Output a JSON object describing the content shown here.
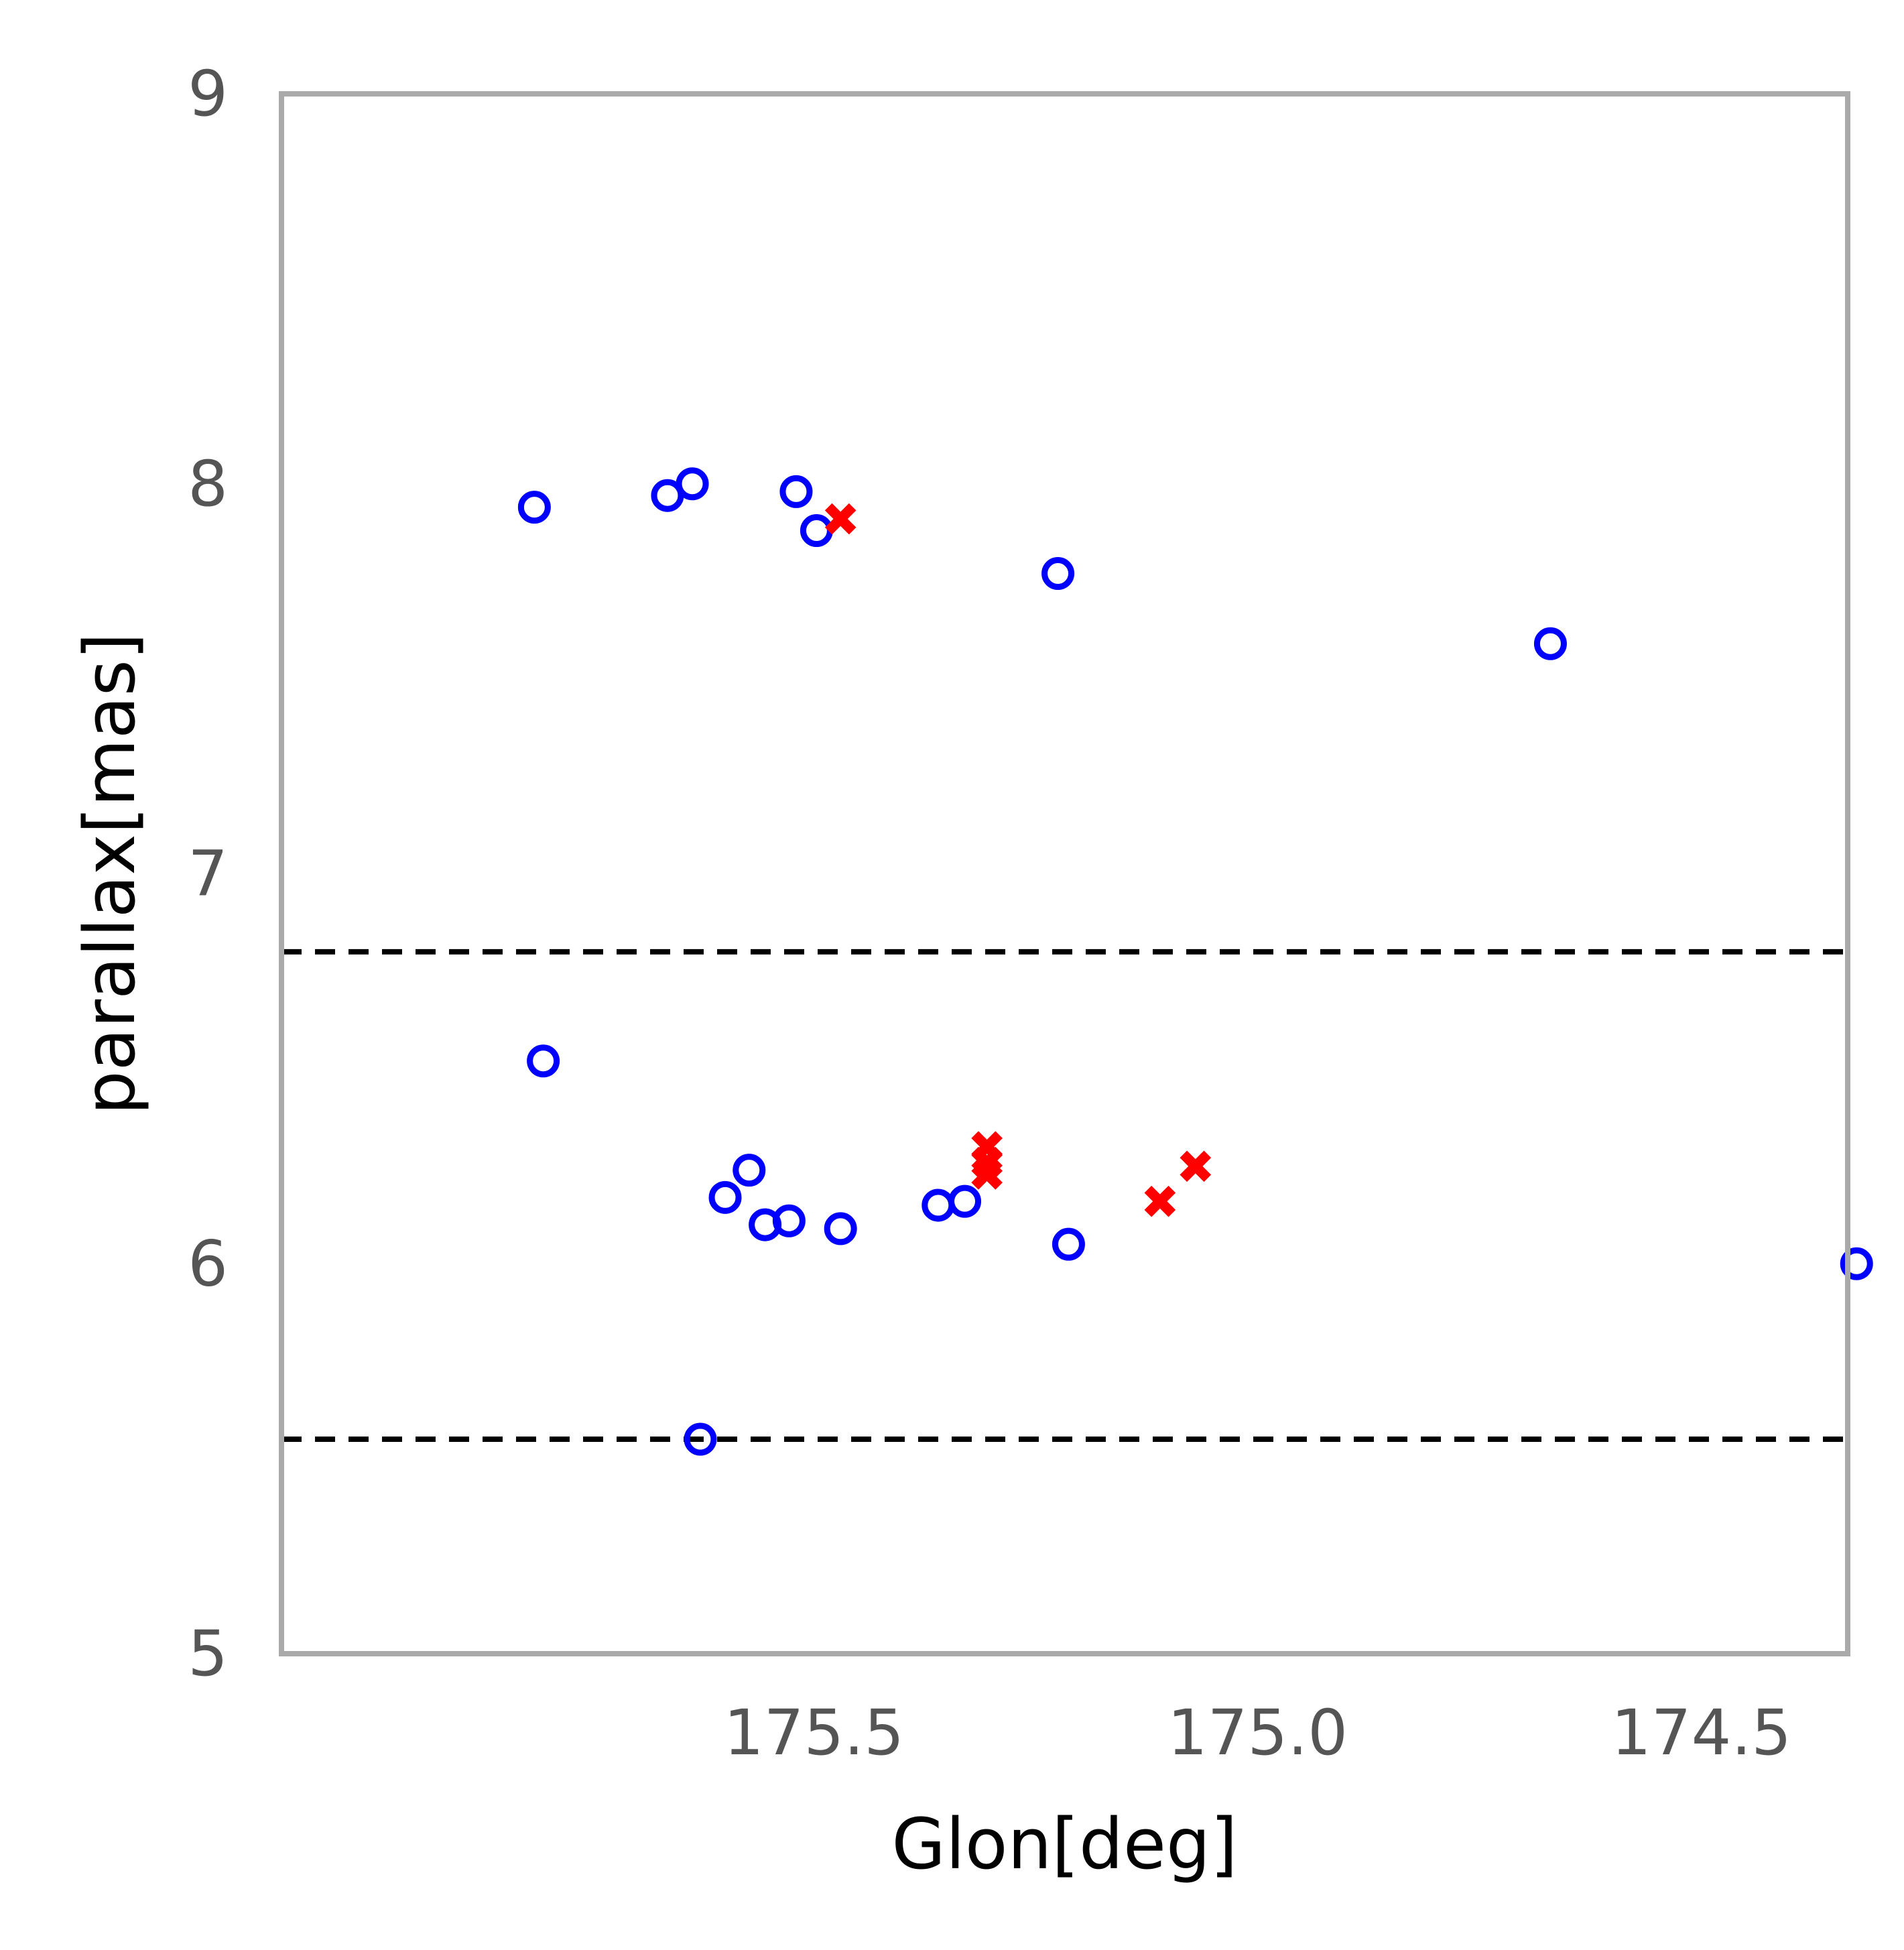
{
  "chart_data": {
    "type": "scatter",
    "title": "",
    "xlabel": "Glon[deg]",
    "ylabel": "parallax[mas]",
    "xlim": [
      176.1,
      174.335
    ],
    "ylim": [
      5,
      9
    ],
    "x_inverted": true,
    "grid": false,
    "legend": "none",
    "xticks": [
      {
        "value": 175.5,
        "label": "175.5"
      },
      {
        "value": 175.0,
        "label": "175.0"
      },
      {
        "value": 174.5,
        "label": "174.5"
      }
    ],
    "yticks": [
      {
        "value": 5,
        "label": "5"
      },
      {
        "value": 6,
        "label": "6"
      },
      {
        "value": 7,
        "label": "7"
      },
      {
        "value": 8,
        "label": "8"
      },
      {
        "value": 9,
        "label": "9"
      }
    ],
    "hlines": [
      {
        "y": 6.8,
        "style": "dashed",
        "color": "#000000"
      },
      {
        "y": 5.55,
        "style": "dashed",
        "color": "#000000"
      }
    ],
    "series": [
      {
        "marker": "open-circle",
        "color": "#0000ff",
        "points": [
          {
            "x": 175.815,
            "y": 7.94
          },
          {
            "x": 175.665,
            "y": 7.97
          },
          {
            "x": 175.637,
            "y": 8.0
          },
          {
            "x": 175.52,
            "y": 7.98
          },
          {
            "x": 175.497,
            "y": 7.88
          },
          {
            "x": 175.225,
            "y": 7.77
          },
          {
            "x": 174.67,
            "y": 7.59
          },
          {
            "x": 175.805,
            "y": 6.52
          },
          {
            "x": 175.6,
            "y": 6.17
          },
          {
            "x": 175.573,
            "y": 6.24
          },
          {
            "x": 175.555,
            "y": 6.1
          },
          {
            "x": 175.528,
            "y": 6.11
          },
          {
            "x": 175.47,
            "y": 6.09
          },
          {
            "x": 175.36,
            "y": 6.15
          },
          {
            "x": 175.33,
            "y": 6.16
          },
          {
            "x": 175.213,
            "y": 6.05
          },
          {
            "x": 174.325,
            "y": 6.0
          },
          {
            "x": 175.628,
            "y": 5.55
          }
        ]
      },
      {
        "marker": "x",
        "color": "#ff0000",
        "points": [
          {
            "x": 175.47,
            "y": 7.91
          },
          {
            "x": 175.305,
            "y": 6.3
          },
          {
            "x": 175.305,
            "y": 6.26
          },
          {
            "x": 175.305,
            "y": 6.23
          },
          {
            "x": 175.07,
            "y": 6.25
          },
          {
            "x": 175.11,
            "y": 6.16
          }
        ]
      }
    ]
  }
}
